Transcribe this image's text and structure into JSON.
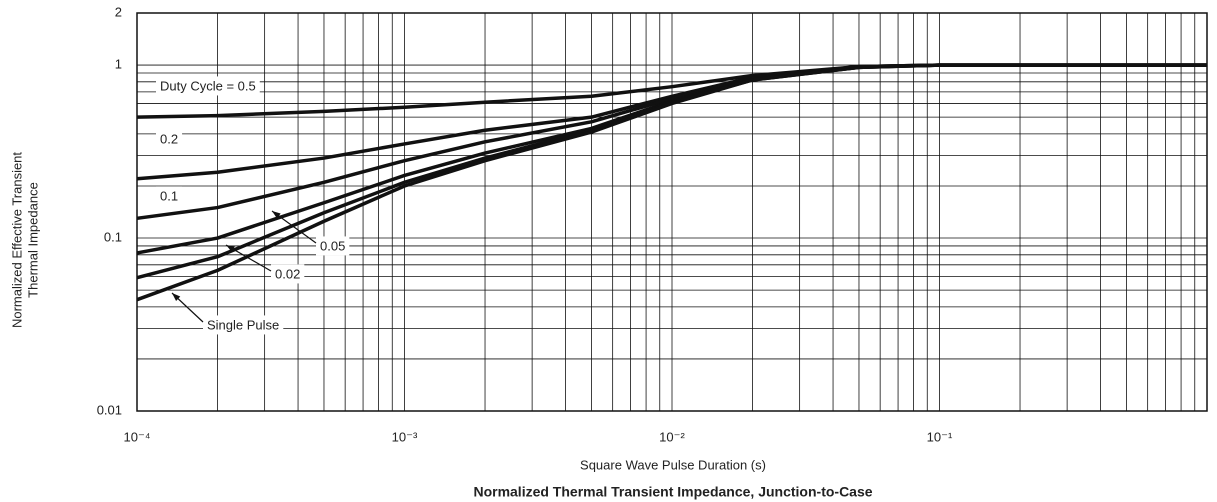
{
  "chart_data": {
    "type": "line",
    "title": "Normalized Thermal Transient Impedance, Junction-to-Case",
    "xlabel": "Square Wave Pulse Duration (s)",
    "ylabel": [
      "Normalized Effective Transient",
      "Thermal Impedance"
    ],
    "xscale": "log",
    "yscale": "log",
    "grid": true,
    "xlim": [
      0.0001,
      1
    ],
    "ylim": [
      0.01,
      2
    ],
    "xticks": [
      {
        "value": 0.0001,
        "label": "10⁻⁴"
      },
      {
        "value": 0.001,
        "label": "10⁻³"
      },
      {
        "value": 0.01,
        "label": "10⁻²"
      },
      {
        "value": 0.1,
        "label": "10⁻¹"
      }
    ],
    "yticks": [
      0.01,
      0.1,
      1,
      2
    ],
    "xminorticks": [
      0.0002,
      0.0003,
      0.0004,
      0.0005,
      0.0006,
      0.0007,
      0.0008,
      0.0009,
      0.002,
      0.003,
      0.004,
      0.005,
      0.006,
      0.007,
      0.008,
      0.009,
      0.02,
      0.03,
      0.04,
      0.05,
      0.06,
      0.07,
      0.08,
      0.09,
      0.2,
      0.3,
      0.4,
      0.5,
      0.6,
      0.7,
      0.8,
      0.9
    ],
    "yminorticks": [
      0.02,
      0.03,
      0.04,
      0.05,
      0.06,
      0.07,
      0.08,
      0.09,
      0.2,
      0.3,
      0.4,
      0.5,
      0.6,
      0.7,
      0.8,
      0.9
    ],
    "x": [
      0.0001,
      0.0002,
      0.0005,
      0.001,
      0.002,
      0.005,
      0.01,
      0.02,
      0.05,
      0.1,
      1
    ],
    "series": [
      {
        "name": "Duty Cycle = 0.5",
        "color": "#111111",
        "values": [
          0.5,
          0.51,
          0.54,
          0.57,
          0.61,
          0.66,
          0.75,
          0.87,
          0.98,
          1.0,
          1.0
        ]
      },
      {
        "name": "0.2",
        "color": "#111111",
        "values": [
          0.22,
          0.24,
          0.29,
          0.35,
          0.42,
          0.5,
          0.66,
          0.85,
          0.98,
          1.0,
          1.0
        ]
      },
      {
        "name": "0.1",
        "color": "#111111",
        "values": [
          0.13,
          0.15,
          0.21,
          0.28,
          0.36,
          0.47,
          0.64,
          0.84,
          0.98,
          1.0,
          1.0
        ]
      },
      {
        "name": "0.05",
        "color": "#111111",
        "values": [
          0.082,
          0.1,
          0.16,
          0.23,
          0.31,
          0.43,
          0.62,
          0.83,
          0.97,
          1.0,
          1.0
        ]
      },
      {
        "name": "0.02",
        "color": "#111111",
        "values": [
          0.059,
          0.078,
          0.14,
          0.21,
          0.29,
          0.42,
          0.61,
          0.82,
          0.97,
          1.0,
          1.0
        ]
      },
      {
        "name": "Single Pulse",
        "color": "#111111",
        "values": [
          0.044,
          0.065,
          0.125,
          0.2,
          0.28,
          0.41,
          0.6,
          0.82,
          0.97,
          1.0,
          1.0
        ]
      }
    ]
  }
}
